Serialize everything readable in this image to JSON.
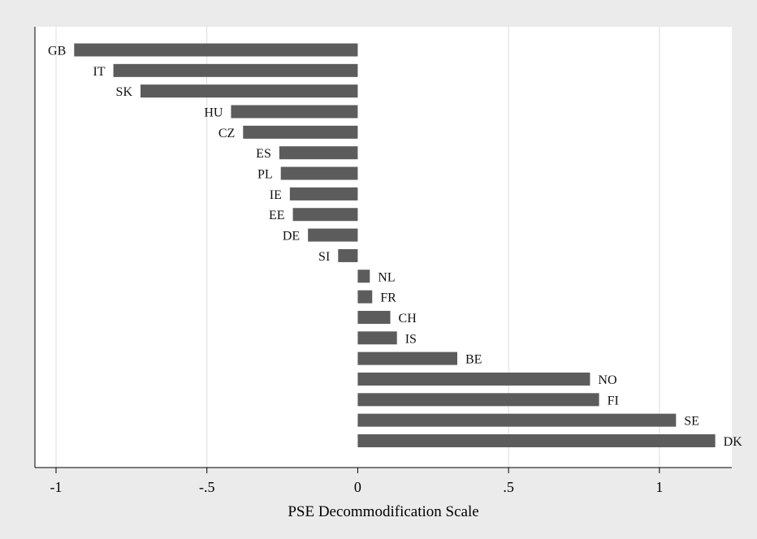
{
  "chart_data": {
    "type": "bar",
    "orientation": "horizontal",
    "xlabel": "PSE Decommodification Scale",
    "xlim": [
      -1.07,
      1.24
    ],
    "x_ticks": [
      -1,
      -0.5,
      0,
      0.5,
      1
    ],
    "x_tick_labels": [
      "-1",
      "-.5",
      "0",
      ".5",
      "1"
    ],
    "grid": true,
    "legend": "none",
    "bar_color": "#5c5c5c",
    "categories": [
      "GB",
      "IT",
      "SK",
      "HU",
      "CZ",
      "ES",
      "PL",
      "IE",
      "EE",
      "DE",
      "SI",
      "NL",
      "FR",
      "CH",
      "IS",
      "BE",
      "NO",
      "FI",
      "SE",
      "DK"
    ],
    "values": [
      -0.94,
      -0.81,
      -0.72,
      -0.42,
      -0.38,
      -0.26,
      -0.255,
      -0.225,
      -0.215,
      -0.165,
      -0.065,
      0.04,
      0.048,
      0.108,
      0.13,
      0.33,
      0.77,
      0.8,
      1.055,
      1.185
    ]
  }
}
